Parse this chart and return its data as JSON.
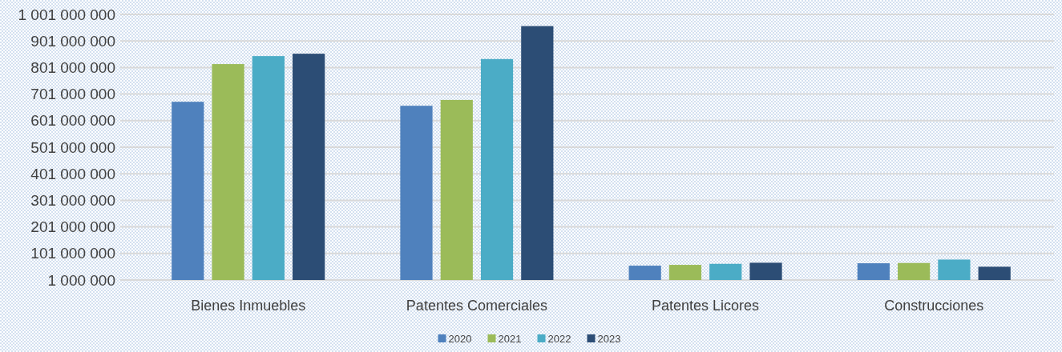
{
  "chart_data": {
    "type": "bar",
    "categories": [
      "Bienes Inmuebles",
      "Patentes Comerciales",
      "Patentes Licores",
      "Construcciones"
    ],
    "series": [
      {
        "name": "2020",
        "color": "#4f81bd",
        "values": [
          672000000,
          657000000,
          55000000,
          64000000
        ]
      },
      {
        "name": "2021",
        "color": "#9bbb59",
        "values": [
          814000000,
          679000000,
          58000000,
          65000000
        ]
      },
      {
        "name": "2022",
        "color": "#4bacc6",
        "values": [
          844000000,
          833000000,
          62000000,
          78000000
        ]
      },
      {
        "name": "2023",
        "color": "#2c4d75",
        "values": [
          853000000,
          957000000,
          66000000,
          51000000
        ]
      }
    ],
    "ylim": [
      1000000,
      1001000000
    ],
    "yticks": [
      {
        "value": 1000000,
        "label": "1 000 000"
      },
      {
        "value": 101000000,
        "label": "101 000 000"
      },
      {
        "value": 201000000,
        "label": "201 000 000"
      },
      {
        "value": 301000000,
        "label": "301 000 000"
      },
      {
        "value": 401000000,
        "label": "401 000 000"
      },
      {
        "value": 501000000,
        "label": "501 000 000"
      },
      {
        "value": 601000000,
        "label": "601 000 000"
      },
      {
        "value": 701000000,
        "label": "701 000 000"
      },
      {
        "value": 801000000,
        "label": "801 000 000"
      },
      {
        "value": 901000000,
        "label": "901 000 000"
      },
      {
        "value": 1001000000,
        "label": "1 001 000 000"
      }
    ],
    "grid": "y",
    "legend": "bottom"
  }
}
